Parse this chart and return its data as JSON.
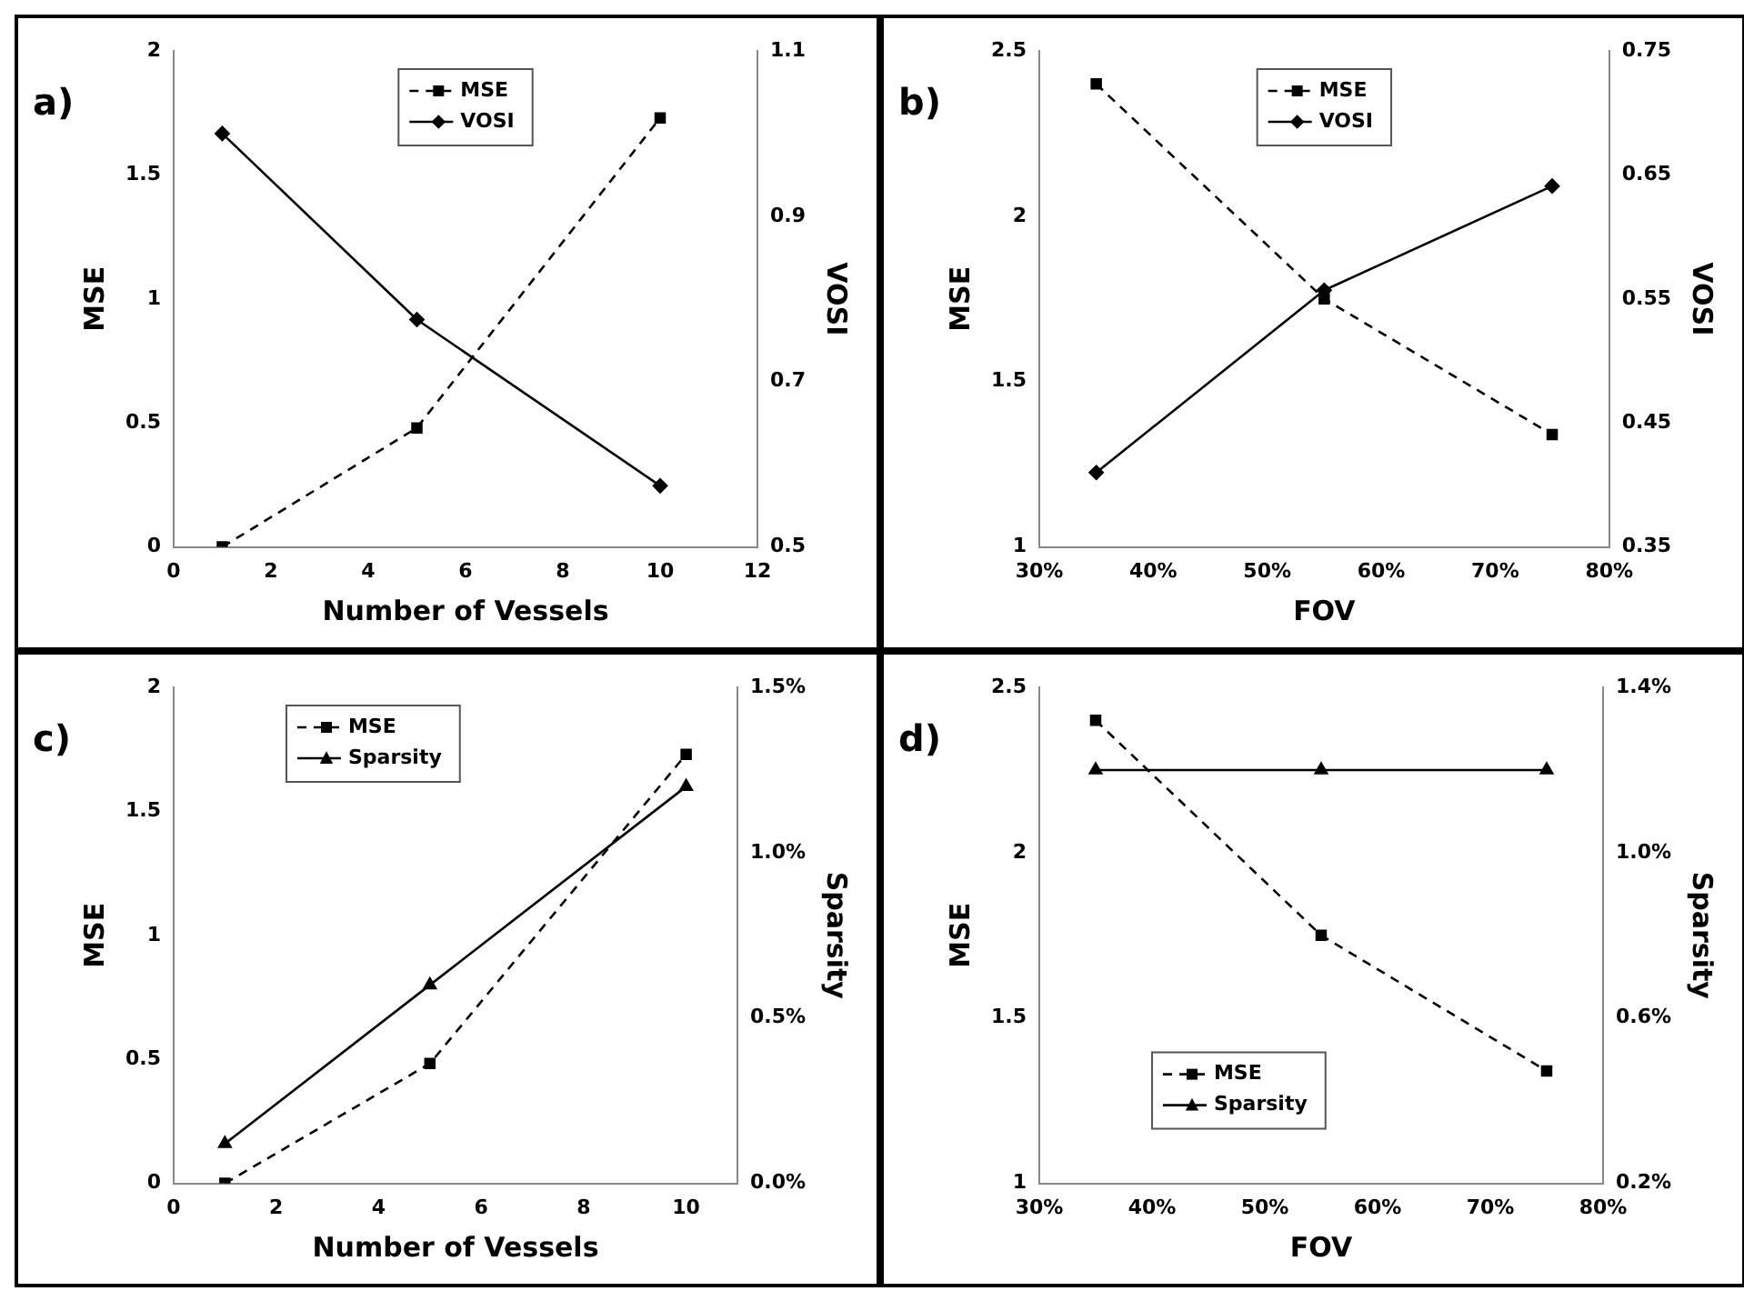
{
  "chart_data": [
    {
      "type": "line",
      "annotations": [
        "a)"
      ],
      "xlabel": "Number of Vessels",
      "ylabel": "MSE",
      "y2label": "VOSI",
      "x": [
        1,
        5,
        10
      ],
      "series": [
        {
          "name": "MSE",
          "color": "#000000",
          "values": [
            0,
            0.48,
            1.73
          ],
          "marker": "square",
          "line_style": "dashed"
        },
        {
          "name": "VOSI",
          "color": "#000000",
          "values": [
            1.0,
            0.775,
            0.574
          ],
          "marker": "diamond",
          "line_style": "solid",
          "axis": "y2"
        }
      ],
      "xlim": [
        0,
        12
      ],
      "xticks": [
        0,
        2,
        4,
        6,
        8,
        10,
        12
      ],
      "ylim": [
        0,
        2
      ],
      "yticks": [
        0,
        0.5,
        1,
        1.5,
        2
      ],
      "y2lim": [
        0.5,
        1.1
      ],
      "y2ticks": [
        0.5,
        0.7,
        0.9,
        1.1
      ],
      "legend": "top",
      "grid": false
    },
    {
      "type": "line",
      "annotations": [
        "b)"
      ],
      "xlabel": "FOV",
      "ylabel": "MSE",
      "y2label": "VOSI",
      "x": [
        35,
        55,
        75
      ],
      "series": [
        {
          "name": "MSE",
          "color": "#000000",
          "values": [
            2.4,
            1.75,
            1.34
          ],
          "marker": "square",
          "line_style": "dashed"
        },
        {
          "name": "VOSI",
          "color": "#000000",
          "values": [
            0.41,
            0.557,
            0.641
          ],
          "marker": "diamond",
          "line_style": "solid",
          "axis": "y2"
        }
      ],
      "xlim": [
        30,
        80
      ],
      "xticks": [
        {
          "value": 30,
          "label": "30%"
        },
        {
          "value": 40,
          "label": "40%"
        },
        {
          "value": 50,
          "label": "50%"
        },
        {
          "value": 60,
          "label": "60%"
        },
        {
          "value": 70,
          "label": "70%"
        },
        {
          "value": 80,
          "label": "80%"
        }
      ],
      "ylim": [
        1,
        2.5
      ],
      "yticks": [
        1,
        1.5,
        2,
        2.5
      ],
      "y2lim": [
        0.35,
        0.75
      ],
      "y2ticks": [
        0.35,
        0.45,
        0.55,
        0.65,
        0.75
      ],
      "legend": "top",
      "grid": false
    },
    {
      "type": "line",
      "annotations": [
        "c)"
      ],
      "xlabel": "Number of Vessels",
      "ylabel": "MSE",
      "y2label": "Sparsity",
      "x": [
        1,
        5,
        10
      ],
      "series": [
        {
          "name": "MSE",
          "color": "#000000",
          "values": [
            0,
            0.483,
            1.73
          ],
          "marker": "square",
          "line_style": "dashed"
        },
        {
          "name": "Sparsity",
          "color": "#000000",
          "values": [
            0.12,
            0.6,
            1.2
          ],
          "marker": "triangle",
          "line_style": "solid",
          "axis": "y2"
        }
      ],
      "xlim": [
        0,
        11
      ],
      "xticks": [
        0,
        2,
        4,
        6,
        8,
        10
      ],
      "ylim": [
        0,
        2
      ],
      "yticks": [
        0,
        0.5,
        1,
        1.5,
        2
      ],
      "y2lim": [
        0,
        1.5
      ],
      "y2ticks": [
        {
          "value": 0,
          "label": "0.0%"
        },
        {
          "value": 0.5,
          "label": "0.5%"
        },
        {
          "value": 1,
          "label": "1.0%"
        },
        {
          "value": 1.5,
          "label": "1.5%"
        }
      ],
      "legend": "top left",
      "grid": false
    },
    {
      "type": "line",
      "annotations": [
        "d)"
      ],
      "xlabel": "FOV",
      "ylabel": "MSE",
      "y2label": "Sparsity",
      "x": [
        35,
        55,
        75
      ],
      "series": [
        {
          "name": "MSE",
          "color": "#000000",
          "values": [
            2.4,
            1.75,
            1.34
          ],
          "marker": "square",
          "line_style": "dashed"
        },
        {
          "name": "Sparsity",
          "color": "#000000",
          "values": [
            1.2,
            1.2,
            1.2
          ],
          "marker": "triangle",
          "line_style": "solid",
          "axis": "y2"
        }
      ],
      "xlim": [
        30,
        80
      ],
      "xticks": [
        {
          "value": 30,
          "label": "30%"
        },
        {
          "value": 40,
          "label": "40%"
        },
        {
          "value": 50,
          "label": "50%"
        },
        {
          "value": 60,
          "label": "60%"
        },
        {
          "value": 70,
          "label": "70%"
        },
        {
          "value": 80,
          "label": "80%"
        }
      ],
      "ylim": [
        1,
        2.5
      ],
      "yticks": [
        1,
        1.5,
        2,
        2.5
      ],
      "y2lim": [
        0.2,
        1.4
      ],
      "y2ticks": [
        {
          "value": 0.2,
          "label": "0.2%"
        },
        {
          "value": 0.6,
          "label": "0.6%"
        },
        {
          "value": 1,
          "label": "1.0%"
        },
        {
          "value": 1.4,
          "label": "1.4%"
        }
      ],
      "legend": "bottom left",
      "grid": false
    }
  ]
}
